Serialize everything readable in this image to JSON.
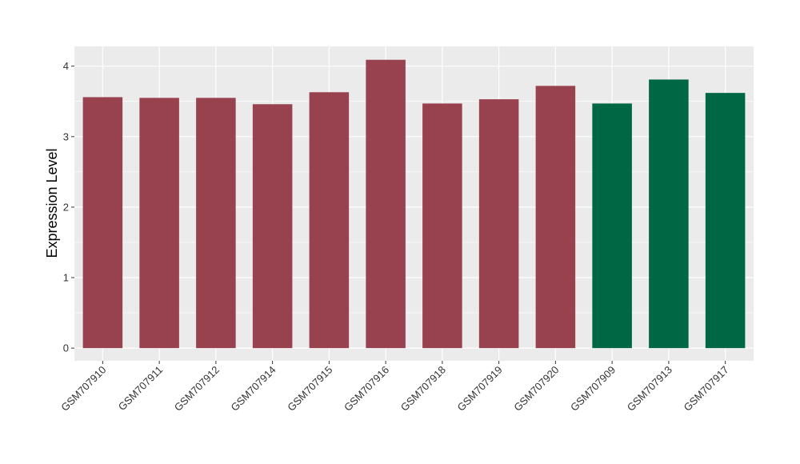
{
  "chart_data": {
    "type": "bar",
    "xlabel": "",
    "ylabel": "Expression Level",
    "ylim": [
      -0.18,
      4.28
    ],
    "yticks": [
      0,
      1,
      2,
      3,
      4
    ],
    "grid": true,
    "legend": "none",
    "categories": [
      "GSM707910",
      "GSM707911",
      "GSM707912",
      "GSM707914",
      "GSM707915",
      "GSM707916",
      "GSM707918",
      "GSM707919",
      "GSM707920",
      "GSM707909",
      "GSM707913",
      "GSM707917"
    ],
    "values": [
      3.56,
      3.55,
      3.55,
      3.46,
      3.63,
      4.09,
      3.47,
      3.53,
      3.72,
      3.47,
      3.81,
      3.62
    ],
    "group_colors": [
      "#99424f",
      "#99424f",
      "#99424f",
      "#99424f",
      "#99424f",
      "#99424f",
      "#99424f",
      "#99424f",
      "#99424f",
      "#006744",
      "#006744",
      "#006744"
    ],
    "panel_background": "#ebebeb",
    "grid_color": "#ffffff"
  }
}
